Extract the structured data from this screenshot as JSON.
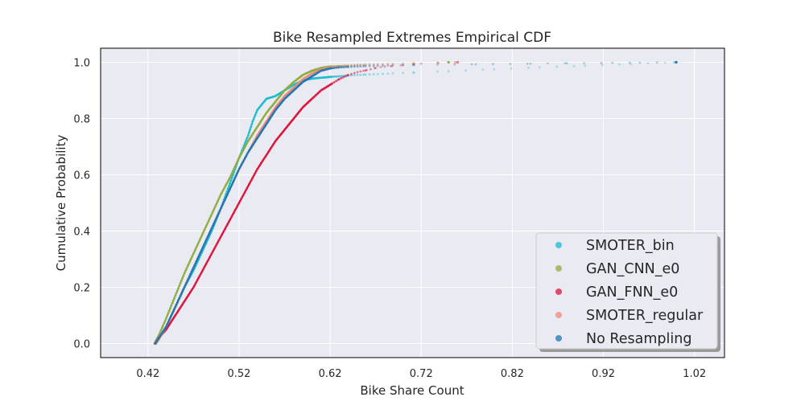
{
  "chart_data": {
    "type": "scatter",
    "title": "Bike Resampled Extremes Empirical CDF",
    "xlabel": "Bike Share Count",
    "ylabel": "Cumulative Probability",
    "xlim": [
      0.368,
      1.053
    ],
    "ylim": [
      -0.05,
      1.05
    ],
    "xticks": [
      "0.42",
      "0.52",
      "0.62",
      "0.72",
      "0.82",
      "0.92",
      "1.02"
    ],
    "xtick_values": [
      0.42,
      0.52,
      0.62,
      0.72,
      0.82,
      0.92,
      1.02
    ],
    "yticks": [
      "0.0",
      "0.2",
      "0.4",
      "0.6",
      "0.8",
      "1.0"
    ],
    "ytick_values": [
      0.0,
      0.2,
      0.4,
      0.6,
      0.8,
      1.0
    ],
    "grid": true,
    "legend_position": "lower-right",
    "series": [
      {
        "name": "SMOTER_bin",
        "color": "#17becf",
        "points": [
          [
            0.428,
            0.0
          ],
          [
            0.432,
            0.02
          ],
          [
            0.44,
            0.06
          ],
          [
            0.45,
            0.13
          ],
          [
            0.46,
            0.2
          ],
          [
            0.47,
            0.26
          ],
          [
            0.48,
            0.33
          ],
          [
            0.49,
            0.4
          ],
          [
            0.5,
            0.48
          ],
          [
            0.51,
            0.57
          ],
          [
            0.52,
            0.66
          ],
          [
            0.53,
            0.74
          ],
          [
            0.535,
            0.79
          ],
          [
            0.54,
            0.83
          ],
          [
            0.55,
            0.87
          ],
          [
            0.56,
            0.88
          ],
          [
            0.57,
            0.9
          ],
          [
            0.58,
            0.92
          ],
          [
            0.59,
            0.935
          ],
          [
            0.6,
            0.942
          ],
          [
            0.62,
            0.948
          ],
          [
            0.65,
            0.955
          ],
          [
            0.7,
            0.962
          ],
          [
            0.75,
            0.968
          ],
          [
            0.8,
            0.975
          ],
          [
            0.85,
            0.982
          ],
          [
            0.9,
            0.988
          ],
          [
            0.95,
            0.994
          ],
          [
            1.0,
            1.0
          ]
        ]
      },
      {
        "name": "GAN_CNN_e0",
        "color": "#8fac3e",
        "points": [
          [
            0.427,
            0.0
          ],
          [
            0.432,
            0.03
          ],
          [
            0.44,
            0.09
          ],
          [
            0.45,
            0.17
          ],
          [
            0.46,
            0.25
          ],
          [
            0.47,
            0.32
          ],
          [
            0.48,
            0.39
          ],
          [
            0.49,
            0.46
          ],
          [
            0.5,
            0.53
          ],
          [
            0.51,
            0.59
          ],
          [
            0.52,
            0.66
          ],
          [
            0.53,
            0.72
          ],
          [
            0.54,
            0.77
          ],
          [
            0.55,
            0.82
          ],
          [
            0.56,
            0.86
          ],
          [
            0.57,
            0.9
          ],
          [
            0.58,
            0.93
          ],
          [
            0.59,
            0.955
          ],
          [
            0.6,
            0.97
          ],
          [
            0.61,
            0.98
          ],
          [
            0.62,
            0.985
          ],
          [
            0.65,
            0.99
          ],
          [
            0.7,
            0.995
          ],
          [
            0.75,
            1.0
          ]
        ]
      },
      {
        "name": "GAN_FNN_e0",
        "color": "#dc143c",
        "points": [
          [
            0.428,
            0.0
          ],
          [
            0.432,
            0.02
          ],
          [
            0.44,
            0.05
          ],
          [
            0.45,
            0.1
          ],
          [
            0.46,
            0.15
          ],
          [
            0.47,
            0.2
          ],
          [
            0.48,
            0.26
          ],
          [
            0.49,
            0.32
          ],
          [
            0.5,
            0.38
          ],
          [
            0.51,
            0.44
          ],
          [
            0.52,
            0.5
          ],
          [
            0.53,
            0.56
          ],
          [
            0.54,
            0.62
          ],
          [
            0.55,
            0.67
          ],
          [
            0.56,
            0.72
          ],
          [
            0.57,
            0.76
          ],
          [
            0.58,
            0.8
          ],
          [
            0.59,
            0.84
          ],
          [
            0.6,
            0.87
          ],
          [
            0.61,
            0.9
          ],
          [
            0.62,
            0.92
          ],
          [
            0.63,
            0.94
          ],
          [
            0.64,
            0.955
          ],
          [
            0.65,
            0.965
          ],
          [
            0.66,
            0.972
          ],
          [
            0.67,
            0.98
          ],
          [
            0.68,
            0.985
          ],
          [
            0.7,
            0.99
          ],
          [
            0.72,
            0.995
          ],
          [
            0.76,
            1.0
          ]
        ]
      },
      {
        "name": "SMOTER_regular",
        "color": "#f08878",
        "points": [
          [
            0.429,
            0.0
          ],
          [
            0.433,
            0.02
          ],
          [
            0.44,
            0.06
          ],
          [
            0.45,
            0.13
          ],
          [
            0.46,
            0.2
          ],
          [
            0.47,
            0.27
          ],
          [
            0.48,
            0.34
          ],
          [
            0.49,
            0.41
          ],
          [
            0.5,
            0.48
          ],
          [
            0.51,
            0.55
          ],
          [
            0.52,
            0.62
          ],
          [
            0.53,
            0.68
          ],
          [
            0.54,
            0.74
          ],
          [
            0.55,
            0.79
          ],
          [
            0.56,
            0.84
          ],
          [
            0.57,
            0.88
          ],
          [
            0.58,
            0.91
          ],
          [
            0.59,
            0.94
          ],
          [
            0.6,
            0.96
          ],
          [
            0.61,
            0.975
          ],
          [
            0.62,
            0.982
          ],
          [
            0.65,
            0.99
          ],
          [
            0.7,
            0.995
          ],
          [
            0.76,
            1.0
          ]
        ]
      },
      {
        "name": "No Resampling",
        "color": "#1f77b4",
        "points": [
          [
            0.428,
            0.0
          ],
          [
            0.432,
            0.02
          ],
          [
            0.44,
            0.06
          ],
          [
            0.45,
            0.13
          ],
          [
            0.46,
            0.2
          ],
          [
            0.47,
            0.27
          ],
          [
            0.48,
            0.34
          ],
          [
            0.49,
            0.41
          ],
          [
            0.5,
            0.48
          ],
          [
            0.51,
            0.55
          ],
          [
            0.52,
            0.62
          ],
          [
            0.53,
            0.68
          ],
          [
            0.54,
            0.73
          ],
          [
            0.55,
            0.78
          ],
          [
            0.56,
            0.83
          ],
          [
            0.57,
            0.87
          ],
          [
            0.58,
            0.9
          ],
          [
            0.59,
            0.93
          ],
          [
            0.6,
            0.95
          ],
          [
            0.61,
            0.97
          ],
          [
            0.62,
            0.978
          ],
          [
            0.63,
            0.982
          ],
          [
            0.65,
            0.985
          ],
          [
            0.7,
            0.99
          ],
          [
            0.78,
            0.993
          ],
          [
            0.84,
            0.995
          ],
          [
            0.88,
            0.997
          ],
          [
            0.93,
            0.998
          ],
          [
            0.96,
            0.999
          ],
          [
            1.0,
            1.0
          ]
        ]
      }
    ]
  }
}
